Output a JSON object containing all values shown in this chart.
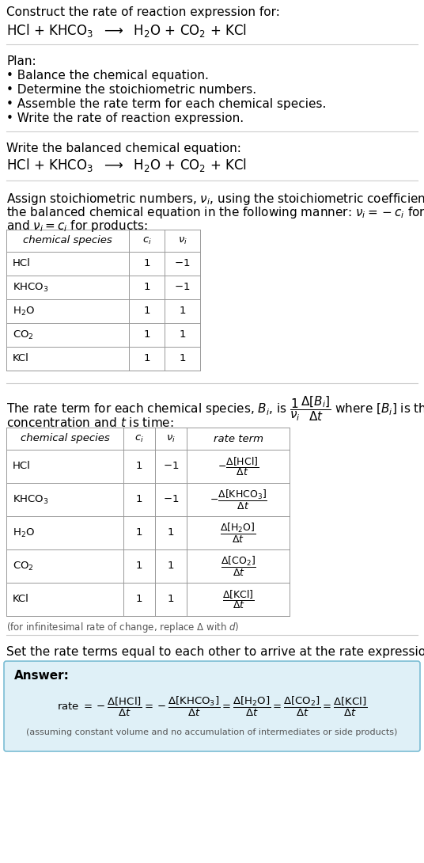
{
  "bg_color": "#ffffff",
  "text_color": "#000000",
  "title_line1": "Construct the rate of reaction expression for:",
  "reaction_eq": "HCl + KHCO$_3$  $\\longrightarrow$  H$_2$O + CO$_2$ + KCl",
  "plan_header": "Plan:",
  "plan_items": [
    "• Balance the chemical equation.",
    "• Determine the stoichiometric numbers.",
    "• Assemble the rate term for each chemical species.",
    "• Write the rate of reaction expression."
  ],
  "balanced_header": "Write the balanced chemical equation:",
  "balanced_eq": "HCl + KHCO$_3$  $\\longrightarrow$  H$_2$O + CO$_2$ + KCl",
  "stoich_line1": "Assign stoichiometric numbers, $\\nu_i$, using the stoichiometric coefficients, $c_i$, from",
  "stoich_line2": "the balanced chemical equation in the following manner: $\\nu_i = -c_i$ for reactants",
  "stoich_line3": "and $\\nu_i = c_i$ for products:",
  "table1_col_headers": [
    "chemical species",
    "$c_i$",
    "$\\nu_i$"
  ],
  "table1_rows": [
    [
      "HCl",
      "1",
      "$-1$"
    ],
    [
      "KHCO$_3$",
      "1",
      "$-1$"
    ],
    [
      "H$_2$O",
      "1",
      "1"
    ],
    [
      "CO$_2$",
      "1",
      "1"
    ],
    [
      "KCl",
      "1",
      "1"
    ]
  ],
  "rate_line1": "The rate term for each chemical species, $B_i$, is $\\dfrac{1}{\\nu_i}\\dfrac{\\Delta[B_i]}{\\Delta t}$ where $[B_i]$ is the amount",
  "rate_line2": "concentration and $t$ is time:",
  "table2_col_headers": [
    "chemical species",
    "$c_i$",
    "$\\nu_i$",
    "rate term"
  ],
  "table2_rows": [
    [
      "HCl",
      "1",
      "$-1$",
      "$-\\dfrac{\\Delta[\\mathrm{HCl}]}{\\Delta t}$"
    ],
    [
      "KHCO$_3$",
      "1",
      "$-1$",
      "$-\\dfrac{\\Delta[\\mathrm{KHCO_3}]}{\\Delta t}$"
    ],
    [
      "H$_2$O",
      "1",
      "1",
      "$\\dfrac{\\Delta[\\mathrm{H_2O}]}{\\Delta t}$"
    ],
    [
      "CO$_2$",
      "1",
      "1",
      "$\\dfrac{\\Delta[\\mathrm{CO_2}]}{\\Delta t}$"
    ],
    [
      "KCl",
      "1",
      "1",
      "$\\dfrac{\\Delta[\\mathrm{KCl}]}{\\Delta t}$"
    ]
  ],
  "infinitesimal_note": "(for infinitesimal rate of change, replace $\\Delta$ with $d$)",
  "set_rate_text": "Set the rate terms equal to each other to arrive at the rate expression:",
  "answer_label": "Answer:",
  "answer_box_color": "#dff0f7",
  "answer_box_border": "#7bbdd4",
  "rate_expr": "rate $= -\\dfrac{\\Delta[\\mathrm{HCl}]}{\\Delta t} = -\\dfrac{\\Delta[\\mathrm{KHCO_3}]}{\\Delta t} = \\dfrac{\\Delta[\\mathrm{H_2O}]}{\\Delta t} = \\dfrac{\\Delta[\\mathrm{CO_2}]}{\\Delta t} = \\dfrac{\\Delta[\\mathrm{KCl}]}{\\Delta t}$",
  "assuming_note": "(assuming constant volume and no accumulation of intermediates or side products)",
  "line_color": "#cccccc",
  "table_line_color": "#999999",
  "fs_body": 11,
  "fs_small": 9.5,
  "fs_eq": 12
}
